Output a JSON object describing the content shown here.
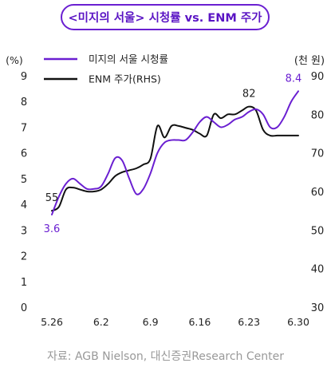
{
  "chart_data": {
    "type": "line",
    "title": "<미지의 서울> 시청률 vs. ENM 주가",
    "source": "자료: AGB Nielson, 대신증권Research Center",
    "x_ticks": [
      "5.26",
      "6.2",
      "6.9",
      "6.16",
      "6.23",
      "6.30"
    ],
    "left_axis": {
      "unit": "(%)",
      "ylim": [
        0,
        9
      ],
      "ticks": [
        "0",
        "1",
        "2",
        "3",
        "4",
        "5",
        "6",
        "7",
        "8",
        "9"
      ]
    },
    "right_axis": {
      "unit": "(천 원)",
      "ylim": [
        30,
        90
      ],
      "ticks": [
        "30",
        "40",
        "50",
        "60",
        "70",
        "80",
        "90"
      ]
    },
    "legend": [
      {
        "name": "미지의 서울 시청률",
        "color": "#6a1fd1"
      },
      {
        "name": "ENM 주가(RHS)",
        "color": "#111111"
      }
    ],
    "series": [
      {
        "name": "미지의 서울 시청률",
        "axis": "left",
        "color": "#6a1fd1",
        "x": [
          "5.26",
          "5.27",
          "5.28",
          "5.29",
          "5.30",
          "5.31",
          "6.1",
          "6.2",
          "6.3",
          "6.4",
          "6.5",
          "6.6",
          "6.7",
          "6.8",
          "6.9",
          "6.10",
          "6.11",
          "6.12",
          "6.13",
          "6.14",
          "6.15",
          "6.16",
          "6.17",
          "6.18",
          "6.19",
          "6.20",
          "6.21",
          "6.22",
          "6.23",
          "6.24",
          "6.25",
          "6.26",
          "6.27",
          "6.28",
          "6.29",
          "6.30"
        ],
        "values": [
          3.6,
          4.3,
          4.8,
          5.0,
          4.8,
          4.6,
          4.6,
          4.7,
          5.2,
          5.8,
          5.7,
          5.0,
          4.4,
          4.6,
          5.2,
          6.0,
          6.4,
          6.5,
          6.5,
          6.5,
          6.8,
          7.2,
          7.4,
          7.2,
          7.0,
          7.1,
          7.3,
          7.4,
          7.6,
          7.7,
          7.5,
          7.0,
          7.0,
          7.4,
          8.0,
          8.4
        ]
      },
      {
        "name": "ENM 주가(RHS)",
        "axis": "right",
        "color": "#111111",
        "x": [
          "5.26",
          "5.27",
          "5.28",
          "5.29",
          "5.30",
          "5.31",
          "6.1",
          "6.2",
          "6.3",
          "6.4",
          "6.5",
          "6.6",
          "6.7",
          "6.8",
          "6.9",
          "6.10",
          "6.11",
          "6.12",
          "6.13",
          "6.14",
          "6.15",
          "6.16",
          "6.17",
          "6.18",
          "6.19",
          "6.20",
          "6.21",
          "6.22",
          "6.23",
          "6.24",
          "6.25",
          "6.26",
          "6.27",
          "6.28",
          "6.29",
          "6.30"
        ],
        "values": [
          55,
          56,
          60.5,
          61,
          60.5,
          60,
          60,
          60.5,
          62,
          64,
          65,
          65.5,
          66,
          67,
          68.5,
          77,
          74,
          77,
          77,
          76.5,
          76,
          75,
          74.5,
          80,
          79,
          80,
          80,
          81,
          82,
          81,
          76,
          74.5,
          74.5,
          74.5,
          74.5,
          74.5
        ]
      }
    ],
    "annotations": [
      {
        "series": 1,
        "index": 0,
        "text": "55"
      },
      {
        "series": 0,
        "index": 0,
        "text": "3.6"
      },
      {
        "series": 1,
        "index": 28,
        "text": "82"
      },
      {
        "series": 0,
        "index": 35,
        "text": "8.4"
      }
    ]
  }
}
